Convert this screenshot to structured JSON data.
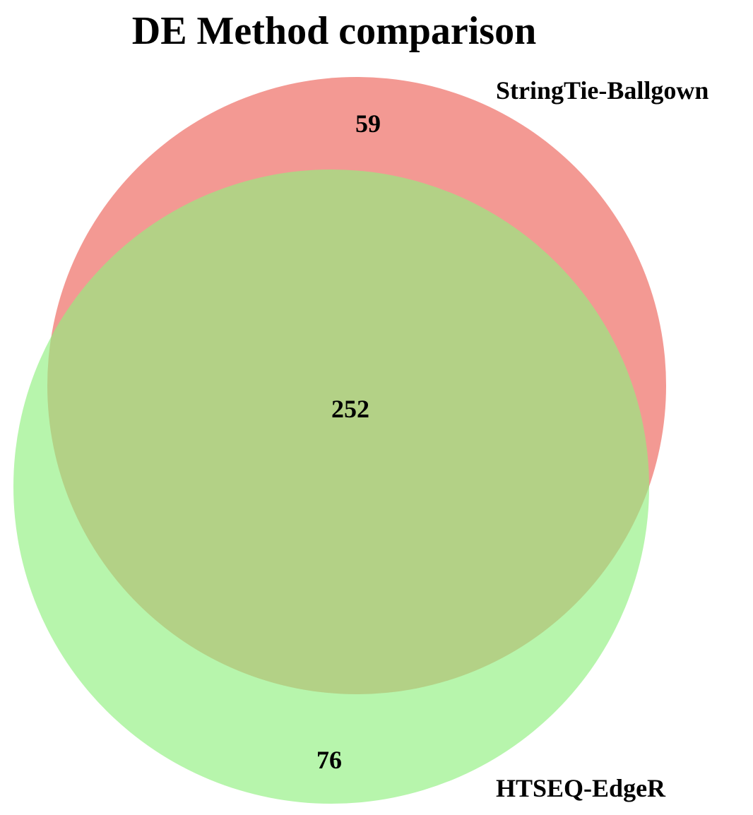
{
  "title": "DE Method comparison",
  "sets": [
    {
      "name": "StringTie-Ballgown",
      "color": "#f08078",
      "opacity": 0.8
    },
    {
      "name": "HTSEQ-EdgeR",
      "color": "#90f080",
      "opacity": 0.65
    }
  ],
  "overlap_color": "#b8cc70",
  "counts": {
    "stringtie_only": "59",
    "both": "252",
    "htseq_only": "76"
  }
}
